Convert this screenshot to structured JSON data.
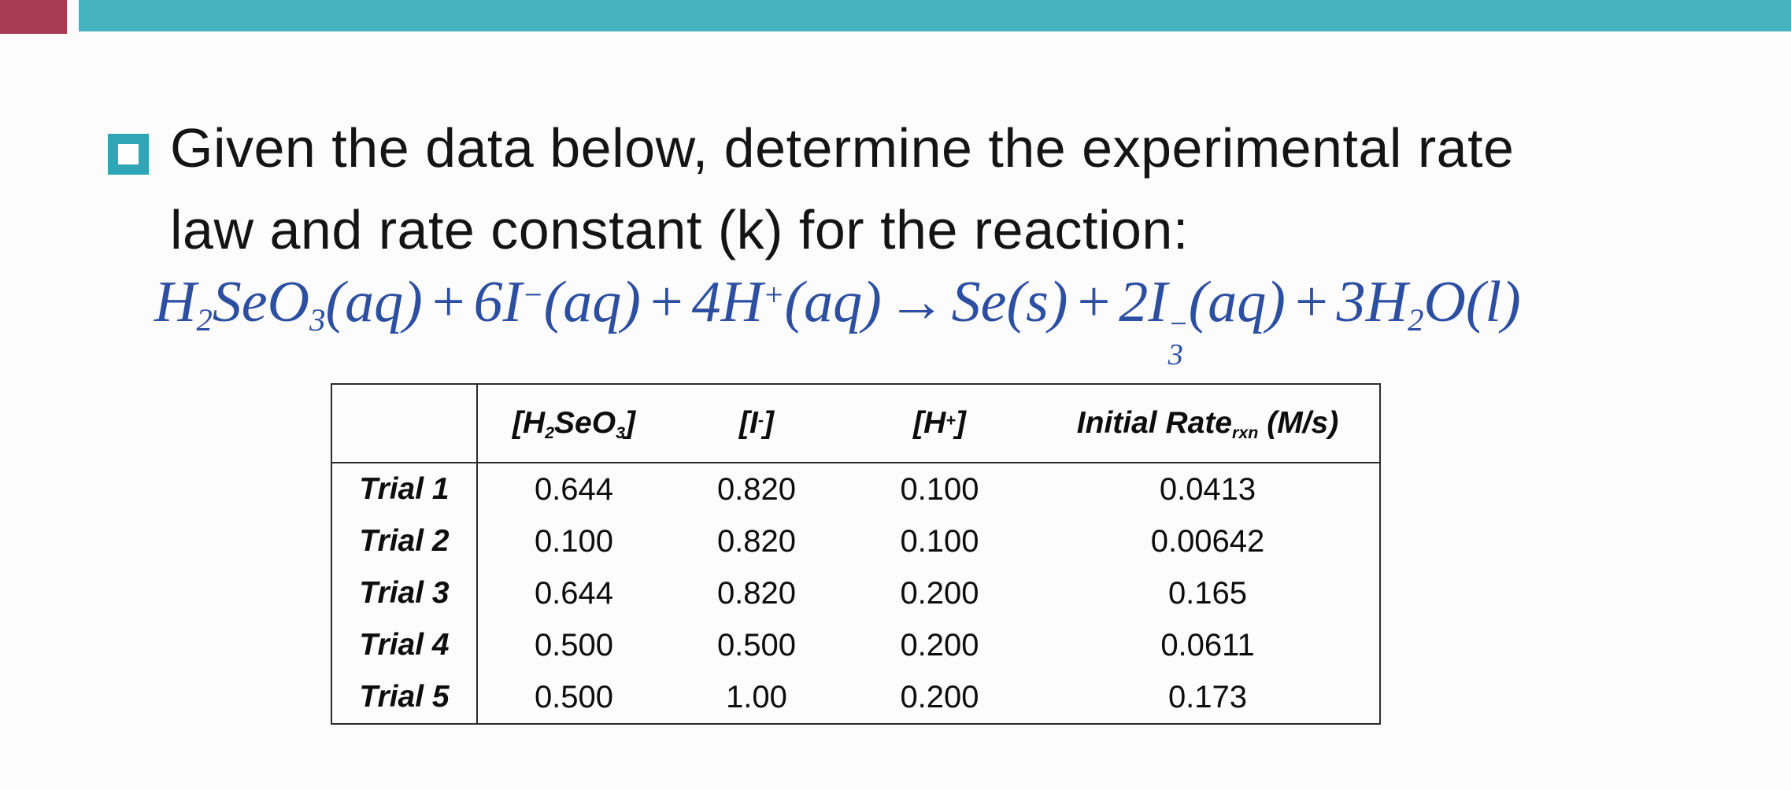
{
  "slide": {
    "background": "#fcfcfc",
    "accent_teal_bar": "#46b4c0",
    "accent_red_block": "#a83c52",
    "bullet_color": "#2fa5b5",
    "equation_color": "#2d4fa1"
  },
  "prompt": {
    "line1": "Given the data below, determine the experimental rate",
    "line2": "law and rate constant (k) for the reaction:"
  },
  "equation": {
    "parts": [
      {
        "t": "H",
        "sub": "2"
      },
      {
        "t": "SeO",
        "sub": "3"
      },
      {
        "t": "(aq)"
      },
      {
        "t": "+",
        "op": true
      },
      {
        "t": "6I",
        "sup": "−"
      },
      {
        "t": "(aq)"
      },
      {
        "t": "+",
        "op": true
      },
      {
        "t": "4H",
        "sup": "+"
      },
      {
        "t": "(aq)"
      },
      {
        "t": "→",
        "op": true
      },
      {
        "t": "Se(s)"
      },
      {
        "t": "+",
        "op": true
      },
      {
        "t": "2I",
        "sub": "3",
        "sup": "−"
      },
      {
        "t": "(aq)"
      },
      {
        "t": "+",
        "op": true
      },
      {
        "t": "3H",
        "sub": "2"
      },
      {
        "t": "O(l)"
      }
    ]
  },
  "table": {
    "headers": [
      {
        "parts": []
      },
      {
        "parts": [
          {
            "t": "[H",
            "sub": "2"
          },
          {
            "t": "SeO",
            "sub": "3"
          },
          {
            "t": "]"
          }
        ]
      },
      {
        "parts": [
          {
            "t": "[I",
            "sup": "-"
          },
          {
            "t": "]"
          }
        ]
      },
      {
        "parts": [
          {
            "t": "[H",
            "sup": "+"
          },
          {
            "t": "]"
          }
        ]
      },
      {
        "parts": [
          {
            "t": "Initial Rate",
            "sub": "rxn"
          },
          {
            "t": " (M/s)"
          }
        ]
      }
    ],
    "rows": [
      {
        "label": "Trial 1",
        "values": [
          "0.644",
          "0.820",
          "0.100",
          "0.0413"
        ]
      },
      {
        "label": "Trial 2",
        "values": [
          "0.100",
          "0.820",
          "0.100",
          "0.00642"
        ]
      },
      {
        "label": "Trial 3",
        "values": [
          "0.644",
          "0.820",
          "0.200",
          "0.165"
        ]
      },
      {
        "label": "Trial 4",
        "values": [
          "0.500",
          "0.500",
          "0.200",
          "0.0611"
        ]
      },
      {
        "label": "Trial 5",
        "values": [
          "0.500",
          "1.00",
          "0.200",
          "0.173"
        ]
      }
    ]
  }
}
